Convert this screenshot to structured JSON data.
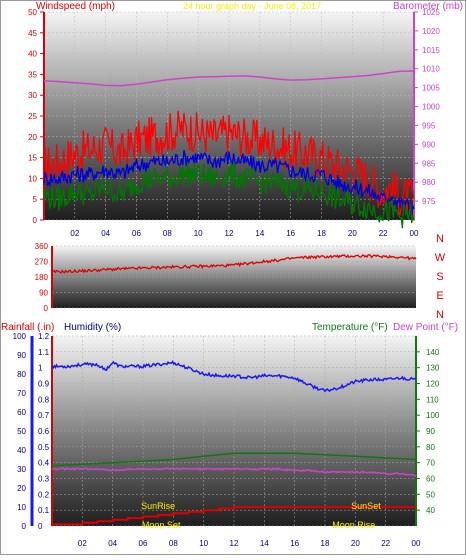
{
  "colors": {
    "wind": "#ff0000",
    "gust": "#ff0000",
    "wind_avg": "#0000dd",
    "wind_low": "#007700",
    "baro": "#cc44cc",
    "dir": "#dd0000",
    "rain": "#dd0000",
    "humidity": "#1a1aee",
    "temp": "#117711",
    "dew": "#cc44cc",
    "sun_label": "#ffee00"
  },
  "chart_data": [
    {
      "type": "line",
      "title": "24 hour graph day - June 08, 2017",
      "left_label": "Windspeed (mph)",
      "right_label": "Barometer (mb)",
      "x_ticks": [
        "02",
        "04",
        "06",
        "08",
        "10",
        "12",
        "14",
        "16",
        "18",
        "20",
        "22",
        "00"
      ],
      "x_range": [
        0,
        24
      ],
      "y_left_range": [
        0,
        50
      ],
      "y_left_ticks": [
        "0",
        "5",
        "10",
        "15",
        "20",
        "25",
        "30",
        "35",
        "40",
        "45",
        "50"
      ],
      "y_right_range": [
        970,
        1025
      ],
      "y_right_ticks": [
        "975",
        "980",
        "985",
        "990",
        "995",
        "1000",
        "1005",
        "1010",
        "1015",
        "1020",
        "1025"
      ],
      "series": [
        {
          "key": "gust",
          "axis": "left",
          "x": [
            0,
            1,
            2,
            3,
            4,
            5,
            6,
            7,
            8,
            9,
            10,
            11,
            12,
            13,
            14,
            15,
            16,
            17,
            18,
            19,
            20,
            21,
            22,
            22.5,
            23,
            24
          ],
          "values": [
            13,
            14,
            16,
            17,
            18,
            16,
            19,
            20,
            21,
            22,
            21,
            20,
            21,
            20,
            19,
            18,
            17,
            16,
            15,
            13,
            12,
            10,
            7,
            8,
            6,
            5
          ]
        },
        {
          "key": "wind_avg",
          "axis": "left",
          "x": [
            0,
            1,
            2,
            3,
            4,
            5,
            6,
            7,
            8,
            9,
            10,
            11,
            12,
            13,
            14,
            15,
            16,
            17,
            18,
            19,
            20,
            21,
            22,
            22.5,
            23,
            24
          ],
          "values": [
            10,
            10,
            11,
            11,
            12,
            11,
            13,
            14,
            14,
            15,
            15,
            14,
            15,
            14,
            13,
            13,
            12,
            11,
            11,
            9,
            8,
            7,
            5,
            6,
            4,
            3
          ]
        },
        {
          "key": "wind_low",
          "axis": "left",
          "x": [
            0,
            1,
            2,
            3,
            4,
            5,
            6,
            7,
            8,
            9,
            10,
            11,
            12,
            13,
            14,
            15,
            16,
            17,
            18,
            19,
            20,
            21,
            22,
            22.5,
            23,
            24
          ],
          "values": [
            6,
            5,
            7,
            6,
            8,
            6,
            9,
            10,
            10,
            11,
            11,
            10,
            11,
            10,
            9,
            9,
            8,
            7,
            7,
            5,
            4,
            3,
            2,
            2,
            1,
            1
          ]
        },
        {
          "key": "baro",
          "axis": "right",
          "x": [
            0,
            1,
            2,
            3,
            4,
            5,
            6,
            7,
            8,
            9,
            10,
            11,
            12,
            13,
            14,
            15,
            16,
            17,
            18,
            19,
            20,
            21,
            22,
            23,
            24
          ],
          "values": [
            1006.8,
            1006.6,
            1006.3,
            1006,
            1005.6,
            1005.5,
            1005.9,
            1006.5,
            1007.1,
            1007.5,
            1007.8,
            1007.9,
            1008.0,
            1008.1,
            1007.8,
            1007.3,
            1007.0,
            1007.1,
            1007.3,
            1007.6,
            1007.9,
            1008.2,
            1008.7,
            1009.3,
            1009.4
          ]
        }
      ]
    },
    {
      "type": "line",
      "right_label": "N W S E N",
      "direction_labels": [
        "N",
        "W",
        "S",
        "E",
        "N"
      ],
      "x_range": [
        0,
        24
      ],
      "y_range": [
        0,
        360
      ],
      "y_ticks": [
        "0",
        "90",
        "180",
        "270",
        "360"
      ],
      "y_tick_values": [
        0,
        90,
        180,
        270,
        360
      ],
      "y_ticks_extra": [
        "45",
        "135",
        "225",
        "315"
      ],
      "series": [
        {
          "key": "dir",
          "axis": "left",
          "x": [
            0,
            1,
            2,
            3,
            4,
            5,
            6,
            7,
            8,
            9,
            10,
            11,
            12,
            13,
            14,
            15,
            16,
            17,
            18,
            19,
            20,
            21,
            22,
            23,
            24
          ],
          "values": [
            210,
            212,
            215,
            220,
            225,
            228,
            232,
            235,
            238,
            240,
            242,
            245,
            248,
            260,
            270,
            278,
            290,
            295,
            298,
            300,
            302,
            301,
            300,
            295,
            285
          ]
        }
      ]
    },
    {
      "type": "line",
      "left_label_1": "Rainfall (.in)",
      "left_label_2": "Humidity (%)",
      "right_label_1": "Temperature (°F)",
      "right_label_2": "Dew Point (°F)",
      "x_ticks": [
        "02",
        "04",
        "06",
        "08",
        "10",
        "12",
        "14",
        "16",
        "18",
        "20",
        "22",
        "00"
      ],
      "x_range": [
        0,
        24
      ],
      "rain_range": [
        0,
        1.2
      ],
      "rain_ticks": [
        "0",
        "0.1",
        "0.2",
        "0.3",
        "0.4",
        "0.5",
        "0.6",
        "0.7",
        "0.8",
        "0.9",
        "1",
        "1.1",
        "1.2"
      ],
      "hum_range": [
        0,
        100
      ],
      "hum_ticks": [
        "0",
        "10",
        "20",
        "30",
        "40",
        "50",
        "60",
        "70",
        "80",
        "90",
        "100"
      ],
      "temp_range": [
        30,
        150
      ],
      "temp_ticks": [
        "40",
        "50",
        "60",
        "70",
        "80",
        "90",
        "100",
        "110",
        "120",
        "130",
        "140"
      ],
      "annotations": {
        "sunrise": "SunRise",
        "sunset": "SunSet",
        "moonset": "Moon Set",
        "moonrise": "Moon Rise"
      },
      "series": [
        {
          "key": "humidity",
          "axis": "humidity",
          "x": [
            0,
            1,
            2,
            3,
            3.5,
            4,
            4.5,
            5,
            6,
            7,
            8,
            9,
            10,
            11,
            12,
            13,
            14,
            15,
            16,
            17,
            18,
            19,
            20,
            21,
            22,
            23,
            24
          ],
          "values": [
            84,
            84,
            85,
            85,
            82,
            86,
            84,
            84,
            84,
            85,
            86,
            83,
            80,
            79,
            79,
            78,
            79,
            79,
            78,
            74,
            71,
            73,
            76,
            77,
            77,
            78,
            77
          ]
        },
        {
          "key": "temp",
          "axis": "temp",
          "x": [
            0,
            2,
            4,
            6,
            8,
            10,
            12,
            14,
            16,
            18,
            20,
            22,
            24
          ],
          "values": [
            68,
            69,
            70,
            71,
            72,
            74,
            76,
            76,
            76,
            75,
            74,
            73,
            72
          ]
        },
        {
          "key": "dew",
          "axis": "temp",
          "x": [
            0,
            1,
            2,
            3,
            4,
            5,
            6,
            7,
            8,
            9,
            10,
            11,
            12,
            13,
            14,
            15,
            16,
            17,
            18,
            19,
            20,
            21,
            22,
            23,
            24
          ],
          "values": [
            66,
            66,
            66,
            66,
            65,
            66,
            66,
            66,
            66,
            66,
            66,
            66,
            66,
            66,
            66,
            66,
            65,
            65,
            64,
            64,
            64,
            64,
            63,
            63,
            62
          ]
        },
        {
          "key": "rain",
          "axis": "rain",
          "x": [
            0,
            2,
            3,
            4,
            5,
            6,
            7,
            8,
            9,
            10,
            11,
            12,
            13,
            14,
            16,
            18,
            20,
            22,
            24
          ],
          "values": [
            0.01,
            0.02,
            0.03,
            0.04,
            0.05,
            0.06,
            0.07,
            0.08,
            0.09,
            0.1,
            0.11,
            0.12,
            0.12,
            0.12,
            0.12,
            0.12,
            0.12,
            0.12,
            0.12
          ]
        }
      ]
    }
  ]
}
